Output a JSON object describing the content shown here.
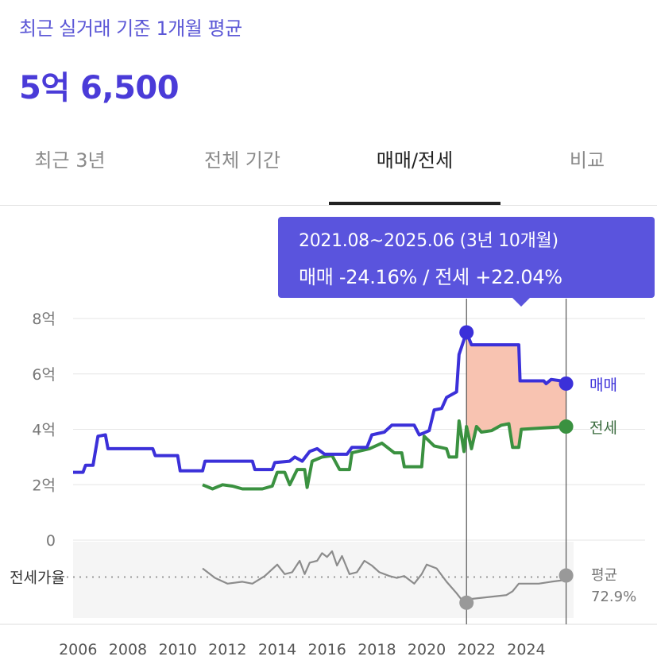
{
  "header": {
    "subtitle": "최근 실거래 기준 1개월 평균",
    "price": "5억 6,500"
  },
  "tabs": [
    {
      "label": "최근 3년",
      "active": false
    },
    {
      "label": "전체 기간",
      "active": false
    },
    {
      "label": "매매/전세",
      "active": true
    },
    {
      "label": "비교",
      "active": false
    }
  ],
  "tooltip": {
    "line1": "2021.08~2025.06 (3년 10개월)",
    "line2": "매매 -24.16%  /  전세 +22.04%"
  },
  "colors": {
    "sale": "#3b30d9",
    "jeonse": "#3a9140",
    "ratio": "#8c8c8c",
    "range_fill": "#f8c3b1",
    "accent": "#5a54dd"
  },
  "chart_data": {
    "type": "line",
    "x_unit": "year",
    "y_unit": "억",
    "ylim": [
      0,
      8
    ],
    "y_ticks": [
      {
        "value": 8,
        "label": "8억"
      },
      {
        "value": 6,
        "label": "6억"
      },
      {
        "value": 4,
        "label": "4억"
      },
      {
        "value": 2,
        "label": "2억"
      },
      {
        "value": 0,
        "label": "0"
      }
    ],
    "x_ticks": [
      "2006",
      "2008",
      "2010",
      "2012",
      "2014",
      "2016",
      "2018",
      "2020",
      "2022",
      "2024"
    ],
    "xlim": [
      2005.8,
      2025.9
    ],
    "grid": true,
    "series": [
      {
        "name": "매매",
        "points": [
          [
            2005.8,
            2.45
          ],
          [
            2006.2,
            2.45
          ],
          [
            2006.3,
            2.7
          ],
          [
            2006.6,
            2.7
          ],
          [
            2006.8,
            3.75
          ],
          [
            2007.1,
            3.8
          ],
          [
            2007.2,
            3.3
          ],
          [
            2009.0,
            3.3
          ],
          [
            2009.1,
            3.05
          ],
          [
            2010.0,
            3.05
          ],
          [
            2010.1,
            2.5
          ],
          [
            2011.0,
            2.5
          ],
          [
            2011.1,
            2.85
          ],
          [
            2013.0,
            2.85
          ],
          [
            2013.1,
            2.55
          ],
          [
            2013.8,
            2.55
          ],
          [
            2013.9,
            2.8
          ],
          [
            2014.5,
            2.85
          ],
          [
            2014.7,
            3.0
          ],
          [
            2015.0,
            2.85
          ],
          [
            2015.3,
            3.2
          ],
          [
            2015.6,
            3.3
          ],
          [
            2015.9,
            3.1
          ],
          [
            2016.8,
            3.1
          ],
          [
            2017.0,
            3.35
          ],
          [
            2017.6,
            3.35
          ],
          [
            2017.8,
            3.8
          ],
          [
            2018.3,
            3.9
          ],
          [
            2018.6,
            4.15
          ],
          [
            2019.5,
            4.15
          ],
          [
            2019.7,
            3.8
          ],
          [
            2020.1,
            3.95
          ],
          [
            2020.3,
            4.7
          ],
          [
            2020.6,
            4.75
          ],
          [
            2020.8,
            5.15
          ],
          [
            2021.2,
            5.35
          ],
          [
            2021.3,
            6.7
          ],
          [
            2021.6,
            7.5
          ],
          [
            2021.8,
            7.05
          ],
          [
            2023.7,
            7.05
          ],
          [
            2023.75,
            5.75
          ],
          [
            2024.7,
            5.75
          ],
          [
            2024.8,
            5.65
          ],
          [
            2025.0,
            5.8
          ],
          [
            2025.4,
            5.75
          ],
          [
            2025.6,
            5.65
          ]
        ]
      },
      {
        "name": "전세",
        "points": [
          [
            2011.0,
            2.0
          ],
          [
            2011.4,
            1.85
          ],
          [
            2011.8,
            2.0
          ],
          [
            2012.2,
            1.95
          ],
          [
            2012.6,
            1.85
          ],
          [
            2013.4,
            1.85
          ],
          [
            2013.8,
            1.95
          ],
          [
            2014.0,
            2.45
          ],
          [
            2014.3,
            2.45
          ],
          [
            2014.5,
            2.0
          ],
          [
            2014.8,
            2.55
          ],
          [
            2015.1,
            2.55
          ],
          [
            2015.2,
            1.9
          ],
          [
            2015.4,
            2.85
          ],
          [
            2015.8,
            3.0
          ],
          [
            2016.2,
            3.05
          ],
          [
            2016.5,
            2.55
          ],
          [
            2016.9,
            2.55
          ],
          [
            2017.0,
            3.15
          ],
          [
            2017.7,
            3.3
          ],
          [
            2018.2,
            3.5
          ],
          [
            2018.7,
            3.15
          ],
          [
            2019.0,
            3.15
          ],
          [
            2019.1,
            2.65
          ],
          [
            2019.8,
            2.65
          ],
          [
            2019.9,
            3.75
          ],
          [
            2020.3,
            3.4
          ],
          [
            2020.8,
            3.3
          ],
          [
            2020.9,
            3.0
          ],
          [
            2021.2,
            3.0
          ],
          [
            2021.3,
            4.3
          ],
          [
            2021.5,
            3.2
          ],
          [
            2021.6,
            4.1
          ],
          [
            2021.8,
            3.3
          ],
          [
            2022.0,
            4.1
          ],
          [
            2022.2,
            3.9
          ],
          [
            2022.6,
            3.95
          ],
          [
            2023.0,
            4.15
          ],
          [
            2023.3,
            4.2
          ],
          [
            2023.45,
            3.35
          ],
          [
            2023.7,
            3.35
          ],
          [
            2023.8,
            4.0
          ],
          [
            2025.6,
            4.1
          ]
        ]
      }
    ],
    "highlight": {
      "from": 2021.6,
      "to": 2025.6
    },
    "endpoint_labels": {
      "sale": "매매",
      "jeonse": "전세"
    },
    "ratio": {
      "label": "전세가율",
      "avg_label": "평균",
      "avg_value": "72.9%",
      "points": [
        [
          2011.0,
          0.82
        ],
        [
          2011.5,
          0.72
        ],
        [
          2012.0,
          0.66
        ],
        [
          2012.6,
          0.68
        ],
        [
          2013.0,
          0.66
        ],
        [
          2013.5,
          0.74
        ],
        [
          2014.0,
          0.86
        ],
        [
          2014.3,
          0.76
        ],
        [
          2014.6,
          0.78
        ],
        [
          2014.9,
          0.9
        ],
        [
          2015.1,
          0.76
        ],
        [
          2015.3,
          0.88
        ],
        [
          2015.6,
          0.9
        ],
        [
          2015.8,
          0.98
        ],
        [
          2016.0,
          0.94
        ],
        [
          2016.2,
          1.0
        ],
        [
          2016.4,
          0.85
        ],
        [
          2016.6,
          0.95
        ],
        [
          2016.9,
          0.76
        ],
        [
          2017.2,
          0.78
        ],
        [
          2017.5,
          0.9
        ],
        [
          2017.8,
          0.85
        ],
        [
          2018.1,
          0.78
        ],
        [
          2018.5,
          0.74
        ],
        [
          2018.8,
          0.72
        ],
        [
          2019.1,
          0.74
        ],
        [
          2019.5,
          0.66
        ],
        [
          2019.8,
          0.76
        ],
        [
          2020.0,
          0.86
        ],
        [
          2020.4,
          0.82
        ],
        [
          2020.8,
          0.68
        ],
        [
          2021.2,
          0.56
        ],
        [
          2021.5,
          0.46
        ],
        [
          2021.8,
          0.5
        ],
        [
          2022.5,
          0.52
        ],
        [
          2023.2,
          0.54
        ],
        [
          2023.45,
          0.58
        ],
        [
          2023.7,
          0.66
        ],
        [
          2024.5,
          0.66
        ],
        [
          2025.0,
          0.68
        ],
        [
          2025.6,
          0.7
        ]
      ],
      "avg_level": 0.729,
      "ylim": [
        0.3,
        1.1
      ]
    }
  }
}
